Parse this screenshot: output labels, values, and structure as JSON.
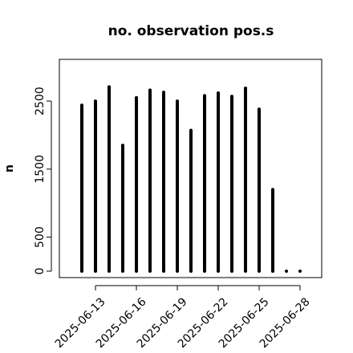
{
  "chart_data": {
    "type": "bar",
    "title": "no. observation pos.s",
    "xlabel": "",
    "ylabel": "n",
    "ylim": [
      -50,
      3000
    ],
    "yticks": [
      0,
      500,
      1500,
      2500
    ],
    "xticks": [
      {
        "label": "2025-06-13",
        "x": 1,
        "color": "#000000"
      },
      {
        "label": "2025-06-16",
        "x": 4,
        "color": "#000000"
      },
      {
        "label": "2025-06-19",
        "x": 7,
        "color": "#228B22"
      },
      {
        "label": "2025-06-22",
        "x": 10,
        "color": "#000000"
      },
      {
        "label": "2025-06-25",
        "x": 13,
        "color": "#000000"
      },
      {
        "label": "2025-06-28",
        "x": 16,
        "color": "#000000"
      }
    ],
    "categories": [
      "2025-06-12",
      "2025-06-13",
      "2025-06-14",
      "2025-06-15",
      "2025-06-16",
      "2025-06-17",
      "2025-06-18",
      "2025-06-19",
      "2025-06-20",
      "2025-06-21",
      "2025-06-22",
      "2025-06-23",
      "2025-06-24",
      "2025-06-25",
      "2025-06-26",
      "2025-06-27",
      "2025-06-28"
    ],
    "values": [
      2440,
      2500,
      2710,
      1850,
      2550,
      2660,
      2630,
      2500,
      2070,
      2580,
      2620,
      2570,
      2690,
      2380,
      1200,
      0,
      0
    ],
    "bar_color": "#000000",
    "grid": false,
    "legend": "none"
  }
}
